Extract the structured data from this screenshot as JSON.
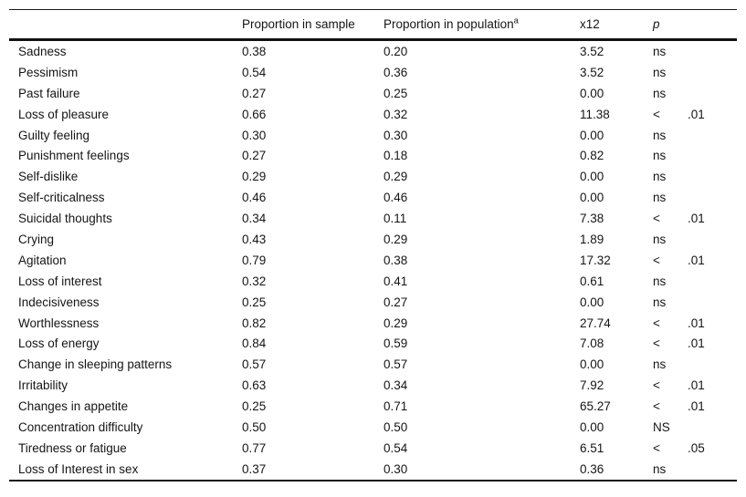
{
  "colors": {
    "background": "#ffffff",
    "text": "#151515",
    "rule": "#1b1b1b"
  },
  "table": {
    "columns": [
      "",
      "Proportion in sample",
      "Proportion in population",
      "x12",
      "p"
    ],
    "population_superscript": "a",
    "rows": [
      {
        "label": "Sadness",
        "sample": "0.38",
        "population": "0.20",
        "chi": "3.52",
        "p_sign": "ns",
        "p_value": ""
      },
      {
        "label": "Pessimism",
        "sample": "0.54",
        "population": "0.36",
        "chi": "3.52",
        "p_sign": "ns",
        "p_value": ""
      },
      {
        "label": "Past failure",
        "sample": "0.27",
        "population": "0.25",
        "chi": "0.00",
        "p_sign": "ns",
        "p_value": ""
      },
      {
        "label": "Loss of pleasure",
        "sample": "0.66",
        "population": "0.32",
        "chi": "11.38",
        "p_sign": "<",
        "p_value": ".01"
      },
      {
        "label": "Guilty feeling",
        "sample": "0.30",
        "population": "0.30",
        "chi": "0.00",
        "p_sign": "ns",
        "p_value": ""
      },
      {
        "label": "Punishment feelings",
        "sample": "0.27",
        "population": "0.18",
        "chi": "0.82",
        "p_sign": "ns",
        "p_value": ""
      },
      {
        "label": "Self-dislike",
        "sample": "0.29",
        "population": "0.29",
        "chi": "0.00",
        "p_sign": "ns",
        "p_value": ""
      },
      {
        "label": "Self-criticalness",
        "sample": "0.46",
        "population": "0.46",
        "chi": "0.00",
        "p_sign": "ns",
        "p_value": ""
      },
      {
        "label": "Suicidal thoughts",
        "sample": "0.34",
        "population": "0.11",
        "chi": "7.38",
        "p_sign": "<",
        "p_value": ".01"
      },
      {
        "label": "Crying",
        "sample": "0.43",
        "population": "0.29",
        "chi": "1.89",
        "p_sign": "ns",
        "p_value": ""
      },
      {
        "label": "Agitation",
        "sample": "0.79",
        "population": "0.38",
        "chi": "17.32",
        "p_sign": "<",
        "p_value": ".01"
      },
      {
        "label": "Loss of interest",
        "sample": "0.32",
        "population": "0.41",
        "chi": "0.61",
        "p_sign": "ns",
        "p_value": ""
      },
      {
        "label": "Indecisiveness",
        "sample": "0.25",
        "population": "0.27",
        "chi": "0.00",
        "p_sign": "ns",
        "p_value": ""
      },
      {
        "label": "Worthlessness",
        "sample": "0.82",
        "population": "0.29",
        "chi": "27.74",
        "p_sign": "<",
        "p_value": ".01"
      },
      {
        "label": "Loss of energy",
        "sample": "0.84",
        "population": "0.59",
        "chi": "7.08",
        "p_sign": "<",
        "p_value": ".01"
      },
      {
        "label": "Change in sleeping patterns",
        "sample": "0.57",
        "population": "0.57",
        "chi": "0.00",
        "p_sign": "ns",
        "p_value": ""
      },
      {
        "label": "Irritability",
        "sample": "0.63",
        "population": "0.34",
        "chi": "7.92",
        "p_sign": "<",
        "p_value": ".01"
      },
      {
        "label": "Changes in appetite",
        "sample": "0.25",
        "population": "0.71",
        "chi": "65.27",
        "p_sign": "<",
        "p_value": ".01"
      },
      {
        "label": "Concentration difficulty",
        "sample": "0.50",
        "population": "0.50",
        "chi": "0.00",
        "p_sign": "NS",
        "p_value": ""
      },
      {
        "label": "Tiredness or fatigue",
        "sample": "0.77",
        "population": "0.54",
        "chi": "6.51",
        "p_sign": "<",
        "p_value": ".05"
      },
      {
        "label": "Loss of Interest in sex",
        "sample": "0.37",
        "population": "0.30",
        "chi": "0.36",
        "p_sign": "ns",
        "p_value": ""
      }
    ]
  }
}
